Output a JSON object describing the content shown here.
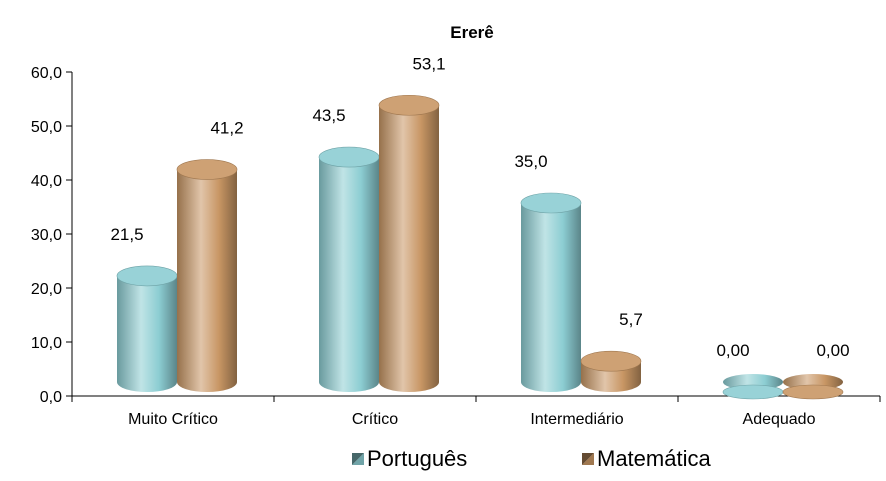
{
  "chart_data": {
    "type": "bar",
    "title": "Ererê",
    "categories": [
      "Muito Crítico",
      "Crítico",
      "Intermediário",
      "Adequado"
    ],
    "series": [
      {
        "name": "Português",
        "values": [
          21.5,
          43.5,
          35.0,
          0.0
        ],
        "labels": [
          "21,5",
          "43,5",
          "35,0",
          "0,00"
        ],
        "color": "#8ccdd2"
      },
      {
        "name": "Matemática",
        "values": [
          41.2,
          53.1,
          5.7,
          0.0
        ],
        "labels": [
          "41,2",
          "53,1",
          "5,7",
          "0,00"
        ],
        "color": "#c89664"
      }
    ],
    "ylim": [
      0,
      60
    ],
    "yticks": [
      "0,0",
      "10,0",
      "20,0",
      "30,0",
      "40,0",
      "50,0",
      "60,0"
    ],
    "grid": false,
    "legend": "bottom",
    "style": "3d-cylinder"
  }
}
